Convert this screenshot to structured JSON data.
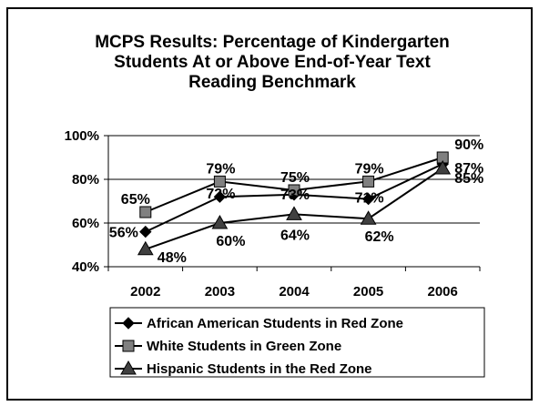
{
  "chart_data": {
    "type": "line",
    "title_lines": [
      "MCPS Results: Percentage of Kindergarten",
      "Students At or Above End-of-Year Text",
      "Reading Benchmark"
    ],
    "xlabel": "",
    "ylabel": "",
    "categories": [
      "2002",
      "2003",
      "2004",
      "2005",
      "2006"
    ],
    "ylim": [
      40,
      100
    ],
    "yticks": [
      40,
      60,
      80,
      100
    ],
    "ytick_labels": [
      "40%",
      "60%",
      "80%",
      "100%"
    ],
    "grid": true,
    "legend_position": "bottom",
    "series": [
      {
        "name": "African American Students in Red Zone",
        "marker": "diamond",
        "color": "#000000",
        "values": [
          56,
          72,
          73,
          71,
          87
        ],
        "labels": [
          "56%",
          "72%",
          "73%",
          "71%",
          "87%"
        ]
      },
      {
        "name": "White Students in Green Zone",
        "marker": "square",
        "color": "#808080",
        "values": [
          65,
          79,
          75,
          79,
          90
        ],
        "labels": [
          "65%",
          "79%",
          "75%",
          "79%",
          "90%"
        ]
      },
      {
        "name": "Hispanic Students in the Red Zone",
        "marker": "triangle",
        "color": "#404040",
        "values": [
          48,
          60,
          64,
          62,
          85
        ],
        "labels": [
          "48%",
          "60%",
          "64%",
          "62%",
          "85%"
        ]
      }
    ]
  }
}
